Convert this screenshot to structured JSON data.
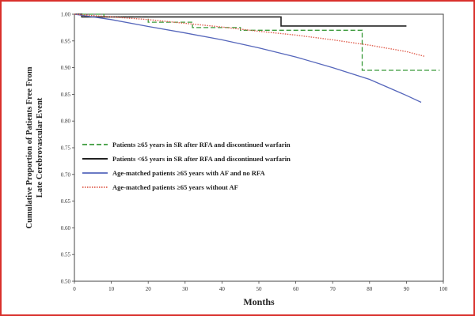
{
  "chart_data": {
    "type": "line",
    "title": "",
    "xlabel": "Months",
    "ylabel": "Cumulative Proportion of Patients Free From Late Cerebrovascular Event",
    "xlim": [
      0,
      100
    ],
    "ylim": [
      0.5,
      1.0
    ],
    "x_ticks": [
      0,
      10,
      20,
      30,
      40,
      50,
      60,
      70,
      80,
      90,
      100
    ],
    "y_ticks": [
      0.5,
      0.55,
      0.6,
      0.65,
      0.7,
      0.75,
      0.8,
      0.85,
      0.9,
      0.95,
      1.0
    ],
    "grid": false,
    "legend_position": "middle-left",
    "series": [
      {
        "name": "Patients ≥65 years in SR after RFA and discontinued warfarin",
        "color": "#3a9a3a",
        "style": "dashed-step",
        "points": [
          [
            0,
            1.0
          ],
          [
            8,
            1.0
          ],
          [
            8,
            0.995
          ],
          [
            20,
            0.995
          ],
          [
            20,
            0.985
          ],
          [
            32,
            0.985
          ],
          [
            32,
            0.975
          ],
          [
            45,
            0.975
          ],
          [
            45,
            0.97
          ],
          [
            78,
            0.97
          ],
          [
            78,
            0.895
          ],
          [
            99,
            0.895
          ]
        ]
      },
      {
        "name": "Patients <65 years in SR after RFA and discontinued warfarin",
        "color": "#222222",
        "style": "solid-step",
        "points": [
          [
            0,
            1.0
          ],
          [
            2,
            1.0
          ],
          [
            2,
            0.995
          ],
          [
            56,
            0.995
          ],
          [
            56,
            0.978
          ],
          [
            90,
            0.978
          ]
        ]
      },
      {
        "name": "Age-matched patients ≥65 years with AF and no RFA",
        "color": "#5566bb",
        "style": "solid",
        "points": [
          [
            0,
            1.0
          ],
          [
            10,
            0.99
          ],
          [
            20,
            0.977
          ],
          [
            30,
            0.965
          ],
          [
            40,
            0.952
          ],
          [
            50,
            0.937
          ],
          [
            60,
            0.92
          ],
          [
            70,
            0.9
          ],
          [
            80,
            0.878
          ],
          [
            90,
            0.848
          ],
          [
            94,
            0.835
          ]
        ]
      },
      {
        "name": "Age-matched patients ≥65 years without AF",
        "color": "#e06050",
        "style": "dotted",
        "points": [
          [
            0,
            1.0
          ],
          [
            10,
            0.995
          ],
          [
            20,
            0.99
          ],
          [
            30,
            0.983
          ],
          [
            40,
            0.976
          ],
          [
            50,
            0.968
          ],
          [
            60,
            0.961
          ],
          [
            70,
            0.952
          ],
          [
            80,
            0.942
          ],
          [
            90,
            0.93
          ],
          [
            95,
            0.921
          ]
        ]
      }
    ]
  }
}
